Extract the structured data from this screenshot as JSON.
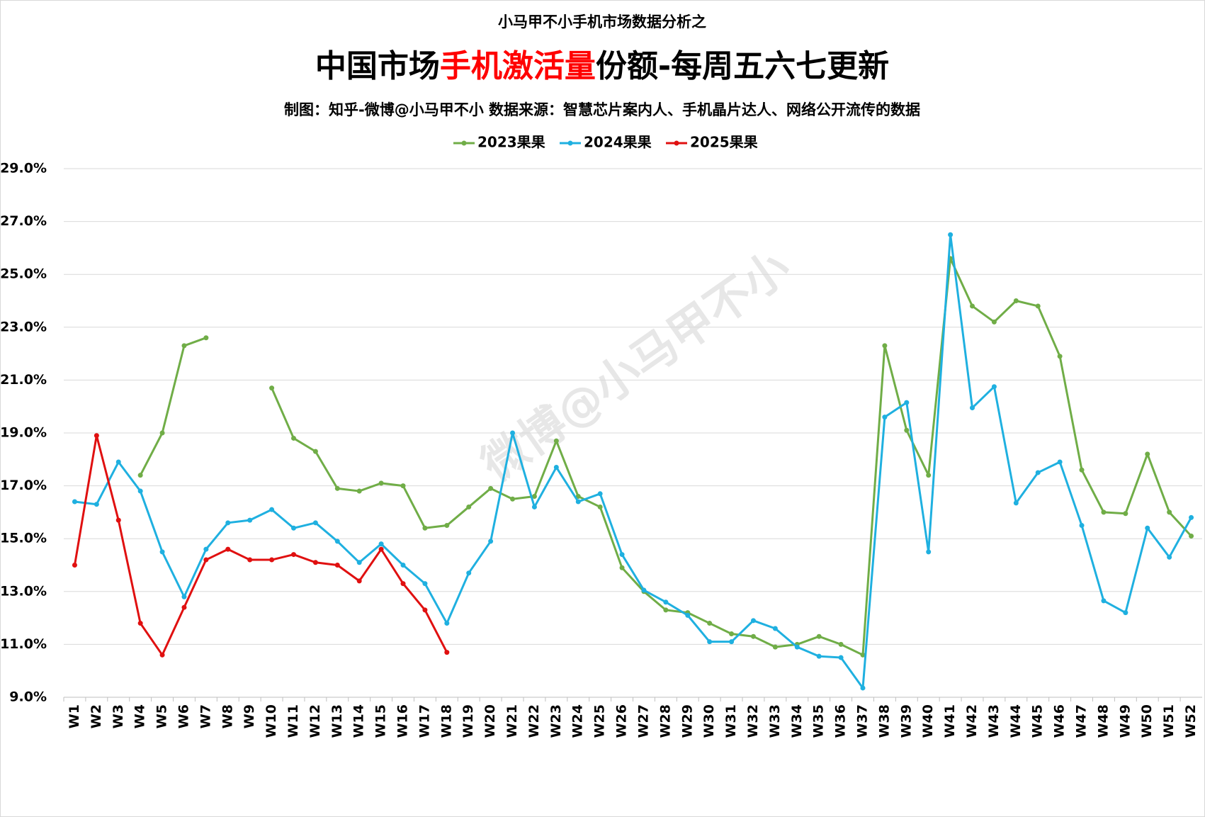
{
  "chart_data": {
    "type": "line",
    "pretitle": "小马甲不小手机市场数据分析之",
    "title_parts": [
      "中国市场",
      "手机激活量",
      "份额-每周五六七更新"
    ],
    "title_colors": [
      "#000000",
      "#ff0000",
      "#000000"
    ],
    "subtitle": "制图：知乎-微博@小马甲不小  数据来源：智慧芯片案内人、手机晶片达人、网络公开流传的数据",
    "watermark": "微博@小马甲不小",
    "categories": [
      "W1",
      "W2",
      "W3",
      "W4",
      "W5",
      "W6",
      "W7",
      "W8",
      "W9",
      "W10",
      "W11",
      "W12",
      "W13",
      "W14",
      "W15",
      "W16",
      "W17",
      "W18",
      "W19",
      "W20",
      "W21",
      "W22",
      "W23",
      "W24",
      "W25",
      "W26",
      "W27",
      "W28",
      "W29",
      "W30",
      "W31",
      "W32",
      "W33",
      "W34",
      "W35",
      "W36",
      "W37",
      "W38",
      "W39",
      "W40",
      "W41",
      "W42",
      "W43",
      "W44",
      "W45",
      "W46",
      "W47",
      "W48",
      "W49",
      "W50",
      "W51",
      "W52"
    ],
    "series": [
      {
        "name": "2023果果",
        "color": "#70ad47",
        "values": [
          null,
          null,
          null,
          17.4,
          19.0,
          22.3,
          22.6,
          null,
          null,
          20.7,
          18.8,
          18.3,
          16.9,
          16.8,
          17.1,
          17.0,
          15.4,
          15.5,
          16.2,
          16.9,
          16.5,
          16.6,
          18.7,
          16.6,
          16.2,
          13.9,
          13.0,
          12.3,
          12.2,
          11.8,
          11.4,
          11.3,
          10.9,
          11.0,
          11.3,
          11.0,
          10.6,
          22.3,
          19.1,
          17.4,
          25.6,
          23.8,
          23.2,
          24.0,
          23.8,
          21.9,
          17.6,
          16.0,
          15.95,
          18.2,
          16.0,
          15.1
        ]
      },
      {
        "name": "2024果果",
        "color": "#1fb0e0",
        "values": [
          16.4,
          16.3,
          17.9,
          16.8,
          14.5,
          12.8,
          14.6,
          15.6,
          15.7,
          16.1,
          15.4,
          15.6,
          14.9,
          14.1,
          14.8,
          14.0,
          13.3,
          11.8,
          13.7,
          14.9,
          19.0,
          16.2,
          17.7,
          16.4,
          16.7,
          14.4,
          13.05,
          12.6,
          12.1,
          11.1,
          11.1,
          11.9,
          11.6,
          10.9,
          10.55,
          10.5,
          9.35,
          19.6,
          20.15,
          14.5,
          26.5,
          19.95,
          20.75,
          16.35,
          17.5,
          17.9,
          15.5,
          12.65,
          12.2,
          15.4,
          14.3,
          15.8
        ]
      },
      {
        "name": "2025果果",
        "color": "#e01010",
        "values": [
          14.0,
          18.9,
          15.7,
          11.8,
          10.6,
          12.4,
          14.2,
          14.6,
          14.2,
          14.2,
          14.4,
          14.1,
          14.0,
          13.4,
          14.6,
          13.3,
          12.3,
          10.7,
          null,
          null,
          null,
          null,
          null,
          null,
          null,
          null,
          null,
          null,
          null,
          null,
          null,
          null,
          null,
          null,
          null,
          null,
          null,
          null,
          null,
          null,
          null,
          null,
          null,
          null,
          null,
          null,
          null,
          null,
          null,
          null,
          null,
          null
        ]
      }
    ],
    "ylim": [
      9,
      29
    ],
    "yticks": [
      {
        "value": 9,
        "label": "9.0%"
      },
      {
        "value": 11,
        "label": "11.0%"
      },
      {
        "value": 13,
        "label": "13.0%"
      },
      {
        "value": 15,
        "label": "15.0%"
      },
      {
        "value": 17,
        "label": "17.0%"
      },
      {
        "value": 19,
        "label": "19.0%"
      },
      {
        "value": 21,
        "label": "21.0%"
      },
      {
        "value": 23,
        "label": "23.0%"
      },
      {
        "value": 25,
        "label": "25.0%"
      },
      {
        "value": 27,
        "label": "27.0%"
      },
      {
        "value": 29,
        "label": "29.0%"
      }
    ],
    "grid": true,
    "legend": "top"
  }
}
